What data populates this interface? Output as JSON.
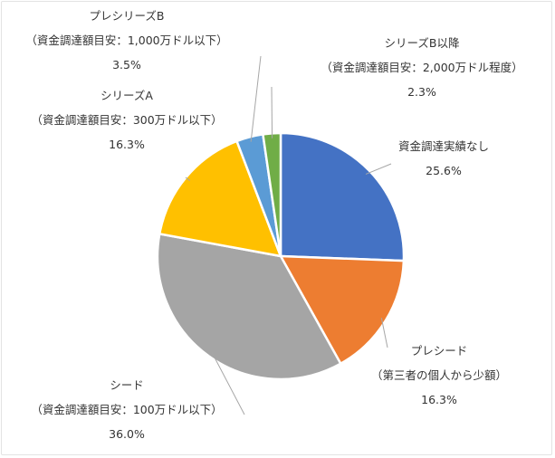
{
  "chart_data": {
    "type": "pie",
    "title": "",
    "slices": [
      {
        "name": "資金調達実績なし",
        "value": 25.6,
        "value_label": "25.6%",
        "color": "#4472C4"
      },
      {
        "name": "プレシード",
        "sublabel": "（第三者の個人から少額）",
        "value": 16.3,
        "value_label": "16.3%",
        "color": "#ED7D31"
      },
      {
        "name": "シード",
        "sublabel": "（資金調達額目安：100万ドル以下）",
        "value": 36.0,
        "value_label": "36.0%",
        "color": "#A5A5A5"
      },
      {
        "name": "シリーズA",
        "sublabel": "（資金調達額目安：300万ドル以下）",
        "value": 16.3,
        "value_label": "16.3%",
        "color": "#FFC000"
      },
      {
        "name": "プレシリーズB",
        "sublabel": "（資金調達額目安：1,000万ドル以下）",
        "value": 3.5,
        "value_label": "3.5%",
        "color": "#5B9BD5"
      },
      {
        "name": "シリーズB以降",
        "sublabel": "（資金調達額目安：2,000万ドル程度）",
        "value": 2.3,
        "value_label": "2.3%",
        "color": "#70AD47"
      }
    ],
    "legend": "none"
  }
}
